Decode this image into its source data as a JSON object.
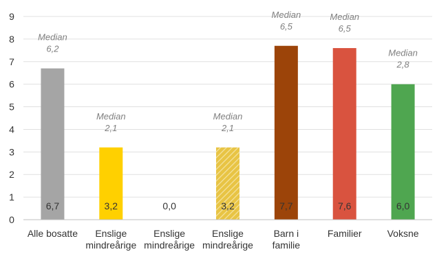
{
  "chart_data": {
    "type": "bar",
    "title": "",
    "xlabel": "",
    "ylabel": "",
    "ylim": [
      0,
      9
    ],
    "yticks": [
      "0",
      "1",
      "2",
      "3",
      "4",
      "5",
      "6",
      "7",
      "8",
      "9"
    ],
    "grid": true,
    "legend": "none",
    "categories": [
      [
        "Alle bosatte"
      ],
      [
        "Enslige",
        "mindreårige"
      ],
      [
        "Enslige",
        "mindreårige"
      ],
      [
        "Enslige",
        "mindreårige"
      ],
      [
        "Barn i",
        "familie"
      ],
      [
        "Familier"
      ],
      [
        "Voksne"
      ]
    ],
    "values": [
      6.7,
      3.2,
      0.0,
      3.2,
      7.7,
      7.6,
      6.0
    ],
    "value_labels": [
      "6,7",
      "3,2",
      "0,0",
      "3,2",
      "7,7",
      "7,6",
      "6,0"
    ],
    "median_labels": [
      [
        "Median",
        "6,2"
      ],
      [
        "Median",
        "2,1"
      ],
      null,
      [
        "Median",
        "2,1"
      ],
      [
        "Median",
        "6,5"
      ],
      [
        "Median",
        "6,5"
      ],
      [
        "Median",
        "2,8"
      ]
    ],
    "colors": [
      "#a5a5a5",
      "#ffd000",
      "#ffd000",
      "#e8c444",
      "#9c4409",
      "#d9533f",
      "#4fa650"
    ],
    "hatched": [
      false,
      false,
      false,
      true,
      false,
      false,
      false
    ]
  }
}
